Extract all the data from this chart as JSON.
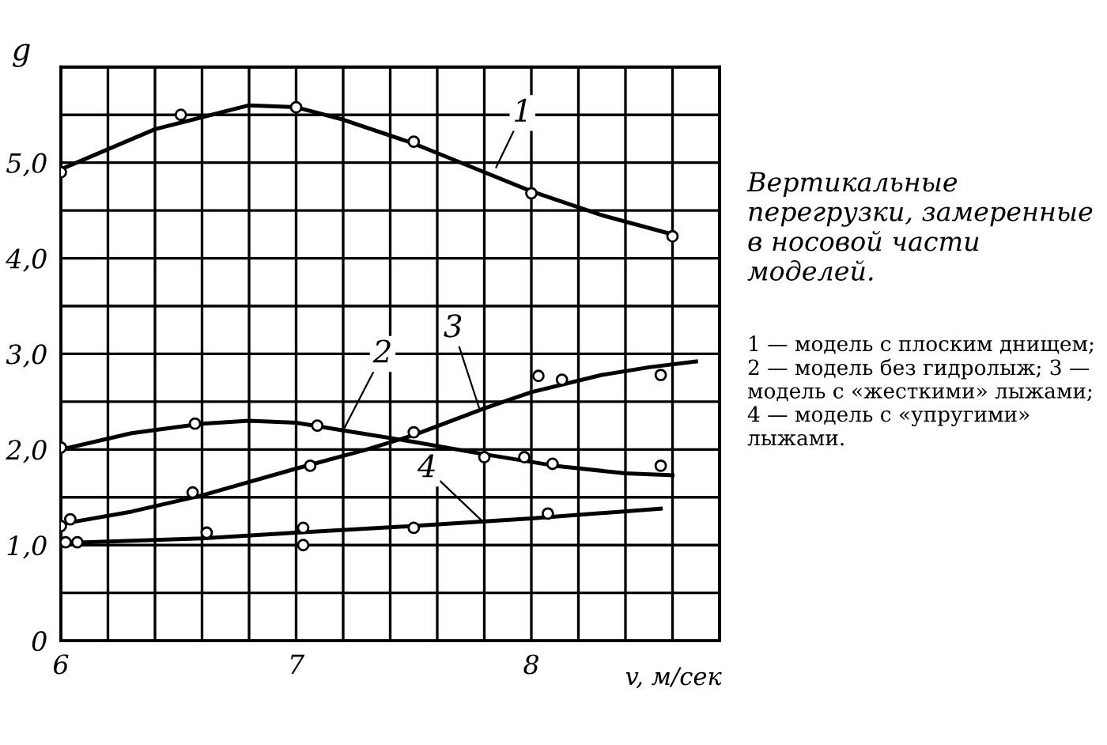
{
  "chart_data": {
    "type": "line",
    "title": "Вертикальные перегрузки, замеренные в носовой части моделей.",
    "ylabel": "g",
    "xlabel": "v, м/сек",
    "annotations": [
      {
        "text": "1",
        "x": 7.85,
        "y": 4.95
      },
      {
        "text": "2",
        "x": 7.2,
        "y": 2.2
      },
      {
        "text": "3",
        "x": 7.78,
        "y": 2.42
      },
      {
        "text": "4",
        "x": 7.8,
        "y": 1.23
      },
      "1 — модель с плоским днищем; 2 — модель без гидролыж; 3 — модель с «жесткими» лыжами; 4 — модель с «упругими» лыжами."
    ],
    "xlim": [
      6,
      8.8
    ],
    "ylim": [
      0,
      6
    ],
    "xticks": [
      6,
      {
        "value": 6.2,
        "label": null
      },
      {
        "value": 6.4,
        "label": null
      },
      {
        "value": 6.6,
        "label": null
      },
      {
        "value": 6.8,
        "label": null
      },
      7,
      {
        "value": 7.2,
        "label": null
      },
      {
        "value": 7.4,
        "label": null
      },
      {
        "value": 7.6,
        "label": null
      },
      {
        "value": 7.8,
        "label": null
      },
      8,
      {
        "value": 8.2,
        "label": null
      },
      {
        "value": 8.4,
        "label": null
      },
      {
        "value": 8.6,
        "label": null
      },
      {
        "value": 8.8,
        "label": null
      }
    ],
    "yticks": [
      0,
      {
        "value": 0.5,
        "label": null
      },
      {
        "value": 1,
        "label": "1,0"
      },
      {
        "value": 1.5,
        "label": null
      },
      {
        "value": 2,
        "label": "2,0"
      },
      {
        "value": 2.5,
        "label": null
      },
      {
        "value": 3,
        "label": "3,0"
      },
      {
        "value": 3.5,
        "label": null
      },
      {
        "value": 4,
        "label": "4,0"
      },
      {
        "value": 4.5,
        "label": null
      },
      {
        "value": 5,
        "label": "5,0"
      },
      {
        "value": 5.5,
        "label": null
      },
      {
        "value": 6,
        "label": null
      }
    ],
    "grid": true,
    "series": [
      {
        "color": "#000000",
        "marker": "none",
        "x": [
          6.0,
          6.4,
          6.8,
          7.0,
          7.2,
          7.5,
          7.8,
          8.0,
          8.3,
          8.6
        ],
        "values": [
          4.93,
          5.35,
          5.6,
          5.58,
          5.45,
          5.2,
          4.9,
          4.7,
          4.45,
          4.25
        ]
      },
      {
        "type": "scatter",
        "color": "#000000",
        "marker": "circle",
        "x": [
          6.0,
          6.51,
          7.0,
          7.5,
          8.0,
          8.6
        ],
        "values": [
          4.9,
          5.5,
          5.58,
          5.22,
          4.68,
          4.23
        ]
      },
      {
        "color": "#000000",
        "marker": "none",
        "x": [
          6.0,
          6.3,
          6.6,
          6.8,
          7.0,
          7.2,
          7.5,
          7.8,
          8.1,
          8.4,
          8.6
        ],
        "values": [
          2.0,
          2.17,
          2.27,
          2.3,
          2.28,
          2.2,
          2.08,
          1.95,
          1.83,
          1.75,
          1.73
        ]
      },
      {
        "type": "scatter",
        "color": "#000000",
        "marker": "circle",
        "x": [
          6.0,
          6.57,
          7.09,
          7.8,
          7.97,
          8.09,
          8.55
        ],
        "values": [
          2.02,
          2.27,
          2.25,
          1.92,
          1.92,
          1.85,
          1.83
        ]
      },
      {
        "color": "#000000",
        "marker": "none",
        "x": [
          6.0,
          6.3,
          6.6,
          7.0,
          7.3,
          7.5,
          7.8,
          8.0,
          8.3,
          8.5,
          8.7
        ],
        "values": [
          1.22,
          1.35,
          1.52,
          1.8,
          2.0,
          2.15,
          2.43,
          2.6,
          2.78,
          2.86,
          2.92
        ]
      },
      {
        "type": "scatter",
        "color": "#000000",
        "marker": "circle",
        "x": [
          6.0,
          6.04,
          6.56,
          7.06,
          7.5,
          8.03,
          8.13,
          8.55
        ],
        "values": [
          1.2,
          1.27,
          1.55,
          1.83,
          2.18,
          2.77,
          2.73,
          2.78
        ]
      },
      {
        "color": "#000000",
        "marker": "none",
        "x": [
          6.0,
          6.6,
          7.0,
          7.5,
          8.0,
          8.55
        ],
        "values": [
          1.02,
          1.07,
          1.13,
          1.2,
          1.28,
          1.38
        ]
      },
      {
        "type": "scatter",
        "color": "#000000",
        "marker": "circle",
        "x": [
          6.02,
          6.07,
          6.62,
          7.03,
          7.03,
          7.5,
          8.07
        ],
        "values": [
          1.03,
          1.03,
          1.13,
          1.18,
          1.0,
          1.18,
          1.33
        ]
      }
    ]
  }
}
